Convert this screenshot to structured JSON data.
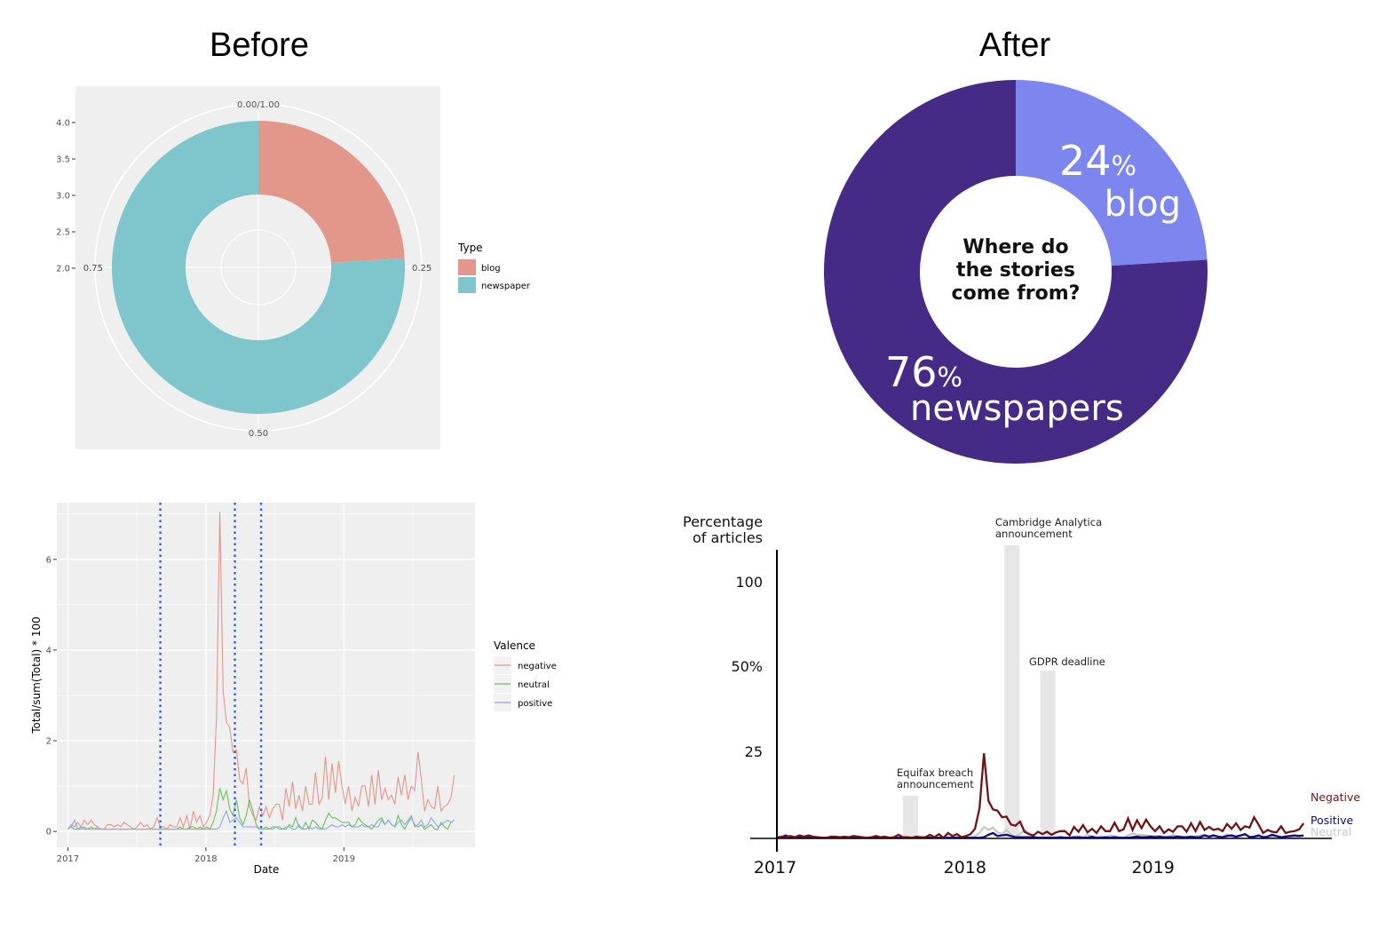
{
  "titles": {
    "before": "Before",
    "after": "After"
  },
  "colors": {
    "gg_blog": "#E2978A",
    "gg_news": "#7FC6CC",
    "gg_panel": "#EFEFEF",
    "gg_neg": "#E2978A",
    "gg_neu": "#6DBE5E",
    "gg_pos": "#86A9EE",
    "gg_vline": "#2E5FF2",
    "after_news": "#452A86",
    "after_blog": "#7C86EE",
    "after_neg": "#6E1416",
    "after_pos": "#0A0C86",
    "after_neu": "#C8C8C8",
    "after_band": "#E6E6E6"
  },
  "chart_data": [
    {
      "id": "before_donut",
      "type": "pie",
      "title": "",
      "categories": [
        "blog",
        "newspaper"
      ],
      "values": [
        0.24,
        0.76
      ],
      "angle_ticks": [
        "0.00/1.00",
        "0.25",
        "0.50",
        "0.75"
      ],
      "radial_ticks": [
        "4.0",
        "3.5",
        "3.0",
        "2.5",
        "2.0"
      ],
      "legend": {
        "title": "Type",
        "entries": [
          "blog",
          "newspaper"
        ],
        "placement": "right"
      }
    },
    {
      "id": "after_donut",
      "type": "pie",
      "center_text": [
        "Where do",
        "the stories",
        "come from?"
      ],
      "slices": [
        {
          "pct": "24",
          "unit": "%",
          "label": "blog",
          "value": 24
        },
        {
          "pct": "76",
          "unit": "%",
          "label": "newspapers",
          "value": 76
        }
      ]
    },
    {
      "id": "before_lines",
      "type": "line",
      "xlabel": "Date",
      "ylabel": "Total/sum(Total) * 100",
      "xticks": [
        "2017",
        "2018",
        "2019"
      ],
      "yticks": [
        "0",
        "2",
        "4",
        "6"
      ],
      "ylim": [
        -0.35,
        7.25
      ],
      "xlim": [
        2016.92,
        2019.95
      ],
      "grid": true,
      "vlines": [
        2017.67,
        2018.21,
        2018.4
      ],
      "legend": {
        "title": "Valence",
        "entries": [
          "negative",
          "neutral",
          "positive"
        ],
        "placement": "right"
      },
      "series": [
        {
          "name": "negative",
          "values": [
            0.05,
            0.15,
            0.1,
            0.2,
            0.1,
            0.25,
            0.15,
            0.25,
            0.15,
            0.1,
            0.05,
            0.05,
            0.15,
            0.15,
            0.1,
            0.15,
            0.1,
            0.2,
            0.15,
            0.1,
            0.05,
            0.1,
            0.2,
            0.1,
            0.15,
            0.05,
            0.1,
            0.3,
            0.1,
            0.1,
            0.05,
            0.15,
            0.1,
            0.1,
            0.3,
            0.1,
            0.35,
            0.05,
            0.45,
            0.2,
            0.35,
            0.1,
            0.2,
            0.35,
            0.8,
            2.5,
            7.05,
            3.1,
            2.4,
            2.3,
            1.75,
            1.8,
            1.15,
            1.05,
            1.4,
            0.55,
            0.35,
            0.25,
            0.55,
            0.35,
            0.55,
            0.3,
            0.5,
            0.6,
            0.6,
            0.25,
            0.95,
            0.55,
            1.1,
            0.5,
            0.8,
            0.45,
            1.0,
            0.6,
            0.6,
            1.3,
            0.6,
            0.75,
            1.65,
            0.7,
            1.5,
            0.85,
            1.55,
            1.0,
            0.6,
            1.0,
            0.45,
            0.75,
            0.55,
            1.0,
            1.0,
            0.55,
            1.25,
            0.6,
            1.35,
            0.7,
            0.95,
            0.7,
            0.8,
            0.6,
            1.2,
            0.8,
            1.25,
            0.7,
            1.0,
            0.9,
            1.75,
            1.15,
            0.45,
            0.7,
            0.55,
            0.5,
            1.0,
            0.45,
            0.55,
            0.6,
            0.75,
            1.25
          ]
        },
        {
          "name": "neutral",
          "values": [
            0.05,
            0.1,
            0.05,
            0.05,
            0.1,
            0.05,
            0.05,
            0.1,
            0.05,
            0.05,
            0.05,
            0.05,
            0.05,
            0.05,
            0.05,
            0.05,
            0.05,
            0.05,
            0.05,
            0.05,
            0.05,
            0.05,
            0.05,
            0.05,
            0.05,
            0.05,
            0.05,
            0.05,
            0.05,
            0.05,
            0.05,
            0.05,
            0.05,
            0.05,
            0.1,
            0.05,
            0.05,
            0.1,
            0.1,
            0.05,
            0.1,
            0.05,
            0.1,
            0.05,
            0.2,
            0.45,
            0.95,
            0.7,
            0.9,
            0.5,
            0.35,
            0.7,
            0.3,
            0.15,
            0.35,
            0.7,
            0.45,
            0.15,
            0.05,
            0.05,
            0.1,
            0.05,
            0.1,
            0.1,
            0.1,
            0.05,
            0.05,
            0.15,
            0.1,
            0.3,
            0.1,
            0.05,
            0.2,
            0.05,
            0.25,
            0.2,
            0.1,
            0.05,
            0.25,
            0.4,
            0.3,
            0.3,
            0.25,
            0.2,
            0.2,
            0.2,
            0.1,
            0.15,
            0.3,
            0.2,
            0.15,
            0.1,
            0.05,
            0.15,
            0.25,
            0.3,
            0.15,
            0.25,
            0.15,
            0.1,
            0.35,
            0.15,
            0.05,
            0.2,
            0.3,
            0.15,
            0.1,
            0.15,
            0.05,
            0.1,
            0.15,
            0.05,
            0.05,
            0.2,
            0.1,
            0.05,
            0.2,
            0.25
          ]
        },
        {
          "name": "positive",
          "values": [
            0.05,
            0.1,
            0.25,
            0.05,
            0.05,
            0.1,
            0.05,
            0.05,
            0.05,
            0.1,
            0.05,
            0.05,
            0.05,
            0.05,
            0.05,
            0.05,
            0.05,
            0.05,
            0.05,
            0.05,
            0.05,
            0.05,
            0.05,
            0.05,
            0.05,
            0.05,
            0.05,
            0.05,
            0.05,
            0.05,
            0.05,
            0.05,
            0.05,
            0.05,
            0.05,
            0.05,
            0.05,
            0.05,
            0.05,
            0.05,
            0.05,
            0.05,
            0.05,
            0.05,
            0.05,
            0.05,
            0.1,
            0.3,
            0.45,
            0.2,
            0.25,
            0.3,
            0.2,
            0.1,
            0.1,
            0.1,
            0.1,
            0.1,
            0.05,
            0.05,
            0.05,
            0.05,
            0.05,
            0.1,
            0.05,
            0.05,
            0.1,
            0.1,
            0.05,
            0.05,
            0.15,
            0.05,
            0.05,
            0.1,
            0.05,
            0.1,
            0.05,
            0.05,
            0.05,
            0.1,
            0.15,
            0.1,
            0.1,
            0.15,
            0.1,
            0.15,
            0.1,
            0.1,
            0.1,
            0.15,
            0.1,
            0.1,
            0.15,
            0.1,
            0.1,
            0.25,
            0.15,
            0.25,
            0.15,
            0.1,
            0.2,
            0.25,
            0.15,
            0.25,
            0.35,
            0.1,
            0.15,
            0.25,
            0.1,
            0.15,
            0.3,
            0.2,
            0.1,
            0.15,
            0.2,
            0.25,
            0.2,
            0.25
          ]
        }
      ]
    },
    {
      "id": "after_lines",
      "type": "line",
      "ylabel_lines": [
        "Percentage",
        "of articles"
      ],
      "xticks": [
        "2017",
        "2018",
        "2019"
      ],
      "yticks": [
        "25",
        "50%",
        "100"
      ],
      "annotations": [
        {
          "lines": [
            "Equifax breach",
            "announcement"
          ],
          "x": 2017.67
        },
        {
          "lines": [
            "Cambridge Analytica",
            "announcement"
          ],
          "x": 2018.21
        },
        {
          "lines": [
            "GDPR deadline"
          ],
          "x": 2018.4
        }
      ],
      "series": [
        {
          "name": "Negative",
          "ref": "before_lines.negative"
        },
        {
          "name": "Positive",
          "ref": "before_lines.positive"
        },
        {
          "name": "Neutral",
          "ref": "before_lines.neutral"
        }
      ]
    }
  ]
}
